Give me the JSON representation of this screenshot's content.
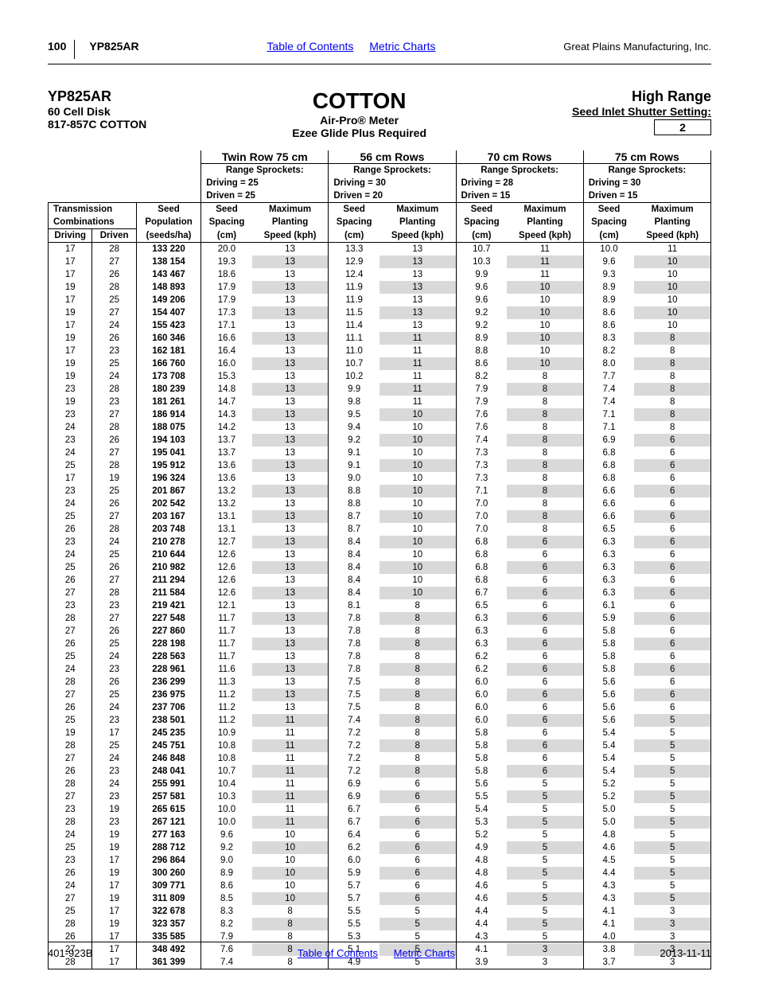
{
  "header": {
    "page": "100",
    "model": "YP825AR",
    "toc": "Table of Contents",
    "metric": "Metric Charts",
    "mfg": "Great Plains Manufacturing, Inc."
  },
  "title": {
    "left1": "YP825AR",
    "left2": "60 Cell Disk",
    "left3": "817-857C  COTTON",
    "center1": "COTTON",
    "center2": "Air-Pro® Meter",
    "center3": "Ezee Glide Plus Required",
    "right1": "High Range",
    "right2": "Seed Inlet Shutter Setting:",
    "setting": "2"
  },
  "sections": [
    {
      "name": "Twin Row 75 cm",
      "range": "Range Sprockets:",
      "driving": "Driving =  25",
      "driven": "Driven =  25"
    },
    {
      "name": "56 cm Rows",
      "range": "Range Sprockets:",
      "driving": "Driving =  30",
      "driven": "Driven =  20"
    },
    {
      "name": "70 cm Rows",
      "range": "Range Sprockets:",
      "driving": "Driving =  28",
      "driven": "Driven =  15"
    },
    {
      "name": "75 cm Rows",
      "range": "Range Sprockets:",
      "driving": "Driving =  30",
      "driven": "Driven =  15"
    }
  ],
  "colheads": {
    "trans": "Transmission",
    "comb": "Combinations",
    "seedpop": "Seed",
    "pop2": "Population",
    "driving": "Driving",
    "driven": "Driven",
    "seeds": "(seeds/ha)",
    "seed": "Seed",
    "spacing": "Spacing",
    "cm": "(cm)",
    "max": "Maximum",
    "planting": "Planting",
    "speed": "Speed (kph)"
  },
  "rows": [
    [
      "17",
      "28",
      "133 220",
      "20.0",
      "13",
      "13.3",
      "13",
      "10.7",
      "11",
      "10.0",
      "11"
    ],
    [
      "17",
      "27",
      "138 154",
      "19.3",
      "13",
      "12.9",
      "13",
      "10.3",
      "11",
      "9.6",
      "10"
    ],
    [
      "17",
      "26",
      "143 467",
      "18.6",
      "13",
      "12.4",
      "13",
      "9.9",
      "11",
      "9.3",
      "10"
    ],
    [
      "19",
      "28",
      "148 893",
      "17.9",
      "13",
      "11.9",
      "13",
      "9.6",
      "10",
      "8.9",
      "10"
    ],
    [
      "17",
      "25",
      "149 206",
      "17.9",
      "13",
      "11.9",
      "13",
      "9.6",
      "10",
      "8.9",
      "10"
    ],
    [
      "19",
      "27",
      "154 407",
      "17.3",
      "13",
      "11.5",
      "13",
      "9.2",
      "10",
      "8.6",
      "10"
    ],
    [
      "17",
      "24",
      "155 423",
      "17.1",
      "13",
      "11.4",
      "13",
      "9.2",
      "10",
      "8.6",
      "10"
    ],
    [
      "19",
      "26",
      "160 346",
      "16.6",
      "13",
      "11.1",
      "11",
      "8.9",
      "10",
      "8.3",
      "8"
    ],
    [
      "17",
      "23",
      "162 181",
      "16.4",
      "13",
      "11.0",
      "11",
      "8.8",
      "10",
      "8.2",
      "8"
    ],
    [
      "19",
      "25",
      "166 760",
      "16.0",
      "13",
      "10.7",
      "11",
      "8.6",
      "10",
      "8.0",
      "8"
    ],
    [
      "19",
      "24",
      "173 708",
      "15.3",
      "13",
      "10.2",
      "11",
      "8.2",
      "8",
      "7.7",
      "8"
    ],
    [
      "23",
      "28",
      "180 239",
      "14.8",
      "13",
      "9.9",
      "11",
      "7.9",
      "8",
      "7.4",
      "8"
    ],
    [
      "19",
      "23",
      "181 261",
      "14.7",
      "13",
      "9.8",
      "11",
      "7.9",
      "8",
      "7.4",
      "8"
    ],
    [
      "23",
      "27",
      "186 914",
      "14.3",
      "13",
      "9.5",
      "10",
      "7.6",
      "8",
      "7.1",
      "8"
    ],
    [
      "24",
      "28",
      "188 075",
      "14.2",
      "13",
      "9.4",
      "10",
      "7.6",
      "8",
      "7.1",
      "8"
    ],
    [
      "23",
      "26",
      "194 103",
      "13.7",
      "13",
      "9.2",
      "10",
      "7.4",
      "8",
      "6.9",
      "6"
    ],
    [
      "24",
      "27",
      "195 041",
      "13.7",
      "13",
      "9.1",
      "10",
      "7.3",
      "8",
      "6.8",
      "6"
    ],
    [
      "25",
      "28",
      "195 912",
      "13.6",
      "13",
      "9.1",
      "10",
      "7.3",
      "8",
      "6.8",
      "6"
    ],
    [
      "17",
      "19",
      "196 324",
      "13.6",
      "13",
      "9.0",
      "10",
      "7.3",
      "8",
      "6.8",
      "6"
    ],
    [
      "23",
      "25",
      "201 867",
      "13.2",
      "13",
      "8.8",
      "10",
      "7.1",
      "8",
      "6.6",
      "6"
    ],
    [
      "24",
      "26",
      "202 542",
      "13.2",
      "13",
      "8.8",
      "10",
      "7.0",
      "8",
      "6.6",
      "6"
    ],
    [
      "25",
      "27",
      "203 167",
      "13.1",
      "13",
      "8.7",
      "10",
      "7.0",
      "8",
      "6.6",
      "6"
    ],
    [
      "26",
      "28",
      "203 748",
      "13.1",
      "13",
      "8.7",
      "10",
      "7.0",
      "8",
      "6.5",
      "6"
    ],
    [
      "23",
      "24",
      "210 278",
      "12.7",
      "13",
      "8.4",
      "10",
      "6.8",
      "6",
      "6.3",
      "6"
    ],
    [
      "24",
      "25",
      "210 644",
      "12.6",
      "13",
      "8.4",
      "10",
      "6.8",
      "6",
      "6.3",
      "6"
    ],
    [
      "25",
      "26",
      "210 982",
      "12.6",
      "13",
      "8.4",
      "10",
      "6.8",
      "6",
      "6.3",
      "6"
    ],
    [
      "26",
      "27",
      "211 294",
      "12.6",
      "13",
      "8.4",
      "10",
      "6.8",
      "6",
      "6.3",
      "6"
    ],
    [
      "27",
      "28",
      "211 584",
      "12.6",
      "13",
      "8.4",
      "10",
      "6.7",
      "6",
      "6.3",
      "6"
    ],
    [
      "23",
      "23",
      "219 421",
      "12.1",
      "13",
      "8.1",
      "8",
      "6.5",
      "6",
      "6.1",
      "6"
    ],
    [
      "28",
      "27",
      "227 548",
      "11.7",
      "13",
      "7.8",
      "8",
      "6.3",
      "6",
      "5.9",
      "6"
    ],
    [
      "27",
      "26",
      "227 860",
      "11.7",
      "13",
      "7.8",
      "8",
      "6.3",
      "6",
      "5.8",
      "6"
    ],
    [
      "26",
      "25",
      "228 198",
      "11.7",
      "13",
      "7.8",
      "8",
      "6.3",
      "6",
      "5.8",
      "6"
    ],
    [
      "25",
      "24",
      "228 563",
      "11.7",
      "13",
      "7.8",
      "8",
      "6.2",
      "6",
      "5.8",
      "6"
    ],
    [
      "24",
      "23",
      "228 961",
      "11.6",
      "13",
      "7.8",
      "8",
      "6.2",
      "6",
      "5.8",
      "6"
    ],
    [
      "28",
      "26",
      "236 299",
      "11.3",
      "13",
      "7.5",
      "8",
      "6.0",
      "6",
      "5.6",
      "6"
    ],
    [
      "27",
      "25",
      "236 975",
      "11.2",
      "13",
      "7.5",
      "8",
      "6.0",
      "6",
      "5.6",
      "6"
    ],
    [
      "26",
      "24",
      "237 706",
      "11.2",
      "13",
      "7.5",
      "8",
      "6.0",
      "6",
      "5.6",
      "6"
    ],
    [
      "25",
      "23",
      "238 501",
      "11.2",
      "11",
      "7.4",
      "8",
      "6.0",
      "6",
      "5.6",
      "5"
    ],
    [
      "19",
      "17",
      "245 235",
      "10.9",
      "11",
      "7.2",
      "8",
      "5.8",
      "6",
      "5.4",
      "5"
    ],
    [
      "28",
      "25",
      "245 751",
      "10.8",
      "11",
      "7.2",
      "8",
      "5.8",
      "6",
      "5.4",
      "5"
    ],
    [
      "27",
      "24",
      "246 848",
      "10.8",
      "11",
      "7.2",
      "8",
      "5.8",
      "6",
      "5.4",
      "5"
    ],
    [
      "26",
      "23",
      "248 041",
      "10.7",
      "11",
      "7.2",
      "8",
      "5.8",
      "6",
      "5.4",
      "5"
    ],
    [
      "28",
      "24",
      "255 991",
      "10.4",
      "11",
      "6.9",
      "6",
      "5.6",
      "5",
      "5.2",
      "5"
    ],
    [
      "27",
      "23",
      "257 581",
      "10.3",
      "11",
      "6.9",
      "6",
      "5.5",
      "5",
      "5.2",
      "5"
    ],
    [
      "23",
      "19",
      "265 615",
      "10.0",
      "11",
      "6.7",
      "6",
      "5.4",
      "5",
      "5.0",
      "5"
    ],
    [
      "28",
      "23",
      "267 121",
      "10.0",
      "11",
      "6.7",
      "6",
      "5.3",
      "5",
      "5.0",
      "5"
    ],
    [
      "24",
      "19",
      "277 163",
      "9.6",
      "10",
      "6.4",
      "6",
      "5.2",
      "5",
      "4.8",
      "5"
    ],
    [
      "25",
      "19",
      "288 712",
      "9.2",
      "10",
      "6.2",
      "6",
      "4.9",
      "5",
      "4.6",
      "5"
    ],
    [
      "23",
      "17",
      "296 864",
      "9.0",
      "10",
      "6.0",
      "6",
      "4.8",
      "5",
      "4.5",
      "5"
    ],
    [
      "26",
      "19",
      "300 260",
      "8.9",
      "10",
      "5.9",
      "6",
      "4.8",
      "5",
      "4.4",
      "5"
    ],
    [
      "24",
      "17",
      "309 771",
      "8.6",
      "10",
      "5.7",
      "6",
      "4.6",
      "5",
      "4.3",
      "5"
    ],
    [
      "27",
      "19",
      "311 809",
      "8.5",
      "10",
      "5.7",
      "6",
      "4.6",
      "5",
      "4.3",
      "5"
    ],
    [
      "25",
      "17",
      "322 678",
      "8.3",
      "8",
      "5.5",
      "5",
      "4.4",
      "5",
      "4.1",
      "3"
    ],
    [
      "28",
      "19",
      "323 357",
      "8.2",
      "8",
      "5.5",
      "5",
      "4.4",
      "5",
      "4.1",
      "3"
    ],
    [
      "26",
      "17",
      "335 585",
      "7.9",
      "8",
      "5.3",
      "5",
      "4.3",
      "5",
      "4.0",
      "3"
    ],
    [
      "27",
      "17",
      "348 492",
      "7.6",
      "8",
      "5.1",
      "5",
      "4.1",
      "3",
      "3.8",
      "3"
    ],
    [
      "28",
      "17",
      "361 399",
      "7.4",
      "8",
      "4.9",
      "5",
      "3.9",
      "3",
      "3.7",
      "3"
    ]
  ],
  "footer": {
    "code": "401-923B",
    "toc": "Table of Contents",
    "metric": "Metric Charts",
    "date": "2013-11-11"
  }
}
